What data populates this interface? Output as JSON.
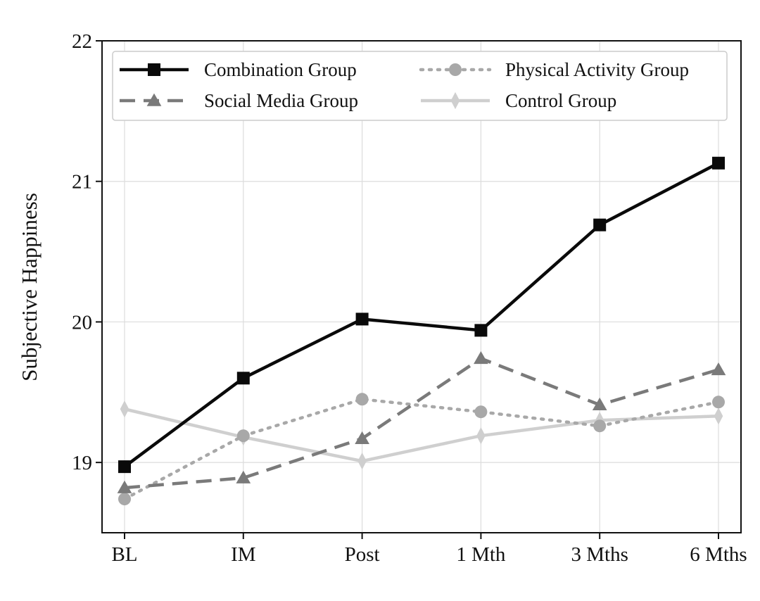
{
  "chart_data": {
    "type": "line",
    "title": "",
    "xlabel": "",
    "ylabel": "Subjective Happiness",
    "categories": [
      "BL",
      "IM",
      "Post",
      "1 Mth",
      "3 Mths",
      "6 Mths"
    ],
    "ylim": [
      18.5,
      22
    ],
    "yticks": [
      19,
      20,
      21,
      22
    ],
    "grid": true,
    "legend_position": "top",
    "series": [
      {
        "name": "Combination Group",
        "values": [
          18.97,
          19.6,
          20.02,
          19.94,
          20.69,
          21.13
        ],
        "color": "#0a0a0a",
        "line_style": "solid",
        "marker": "square"
      },
      {
        "name": "Social Media Group",
        "values": [
          18.82,
          18.89,
          19.17,
          19.74,
          19.41,
          19.66
        ],
        "color": "#7a7a7a",
        "line_style": "dashed",
        "marker": "triangle"
      },
      {
        "name": "Physical Activity Group",
        "values": [
          18.74,
          19.19,
          19.45,
          19.36,
          19.26,
          19.43
        ],
        "color": "#a8a8a8",
        "line_style": "dotted",
        "marker": "circle"
      },
      {
        "name": "Control Group",
        "values": [
          19.38,
          19.18,
          19.01,
          19.19,
          19.3,
          19.33
        ],
        "color": "#cfcfcf",
        "line_style": "solid",
        "marker": "diamond"
      }
    ]
  }
}
